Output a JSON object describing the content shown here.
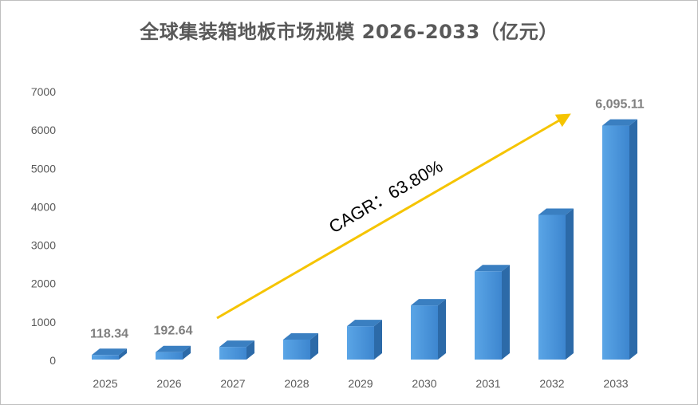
{
  "chart_data": {
    "type": "bar",
    "title": "全球集装箱地板市场规模 2026-2033（亿元）",
    "categories": [
      "2025",
      "2026",
      "2027",
      "2028",
      "2029",
      "2030",
      "2031",
      "2032",
      "2033"
    ],
    "values": [
      118.34,
      192.64,
      330,
      520,
      870,
      1410,
      2300,
      3770,
      6095.11
    ],
    "data_labels": [
      "118.34",
      "192.64",
      "",
      "",
      "",
      "",
      "",
      "",
      "6,095.11"
    ],
    "yticks": [
      "0",
      "1000",
      "2000",
      "3000",
      "4000",
      "5000",
      "6000",
      "7000"
    ],
    "ylim": [
      0,
      7000
    ],
    "grid": false,
    "legend": "none",
    "annotation": "CAGR：63.80%",
    "colors": {
      "bar_front": "#4a93d8",
      "bar_side": "#2c6aa8",
      "bar_top": "#3a7fc1",
      "arrow": "#f5c400"
    }
  }
}
